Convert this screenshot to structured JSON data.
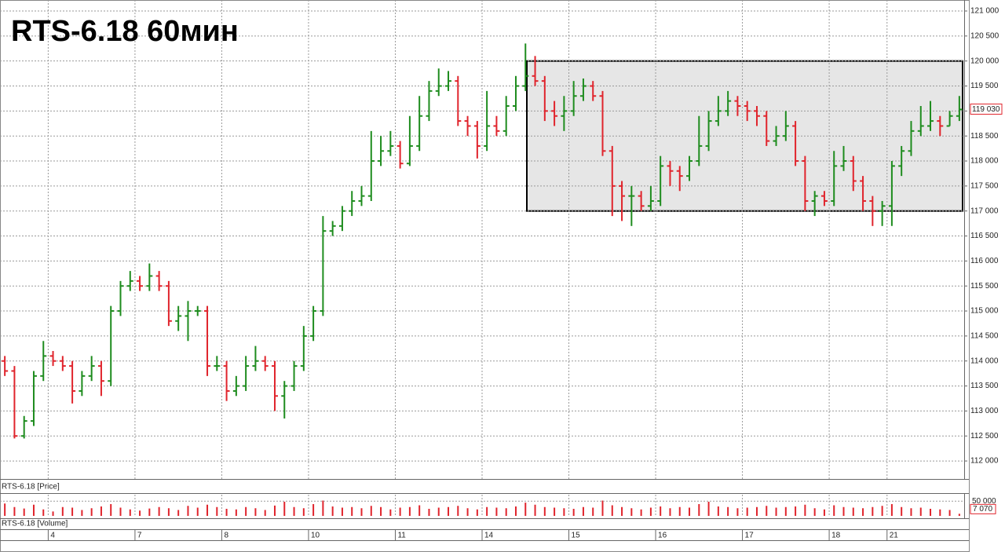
{
  "chart_data": {
    "type": "ohlc",
    "title": "RTS-6.18 60мин",
    "price_pane_label": "RTS-6.18 [Price]",
    "volume_pane_label": "RTS-6.18 [Volume]",
    "up_color": "#1e8c1e",
    "down_color": "#e0242c",
    "volume_color": "#e0242c",
    "box_fill": "#e6e6e6",
    "box": {
      "top": 120000,
      "bottom": 117000
    },
    "grid": true,
    "categories": [
      null,
      null,
      null,
      null,
      null,
      "4",
      null,
      null,
      null,
      null,
      null,
      null,
      null,
      null,
      "7",
      null,
      null,
      null,
      null,
      null,
      null,
      null,
      null,
      "8",
      null,
      null,
      null,
      null,
      null,
      null,
      null,
      null,
      "10",
      null,
      null,
      null,
      null,
      null,
      null,
      null,
      null,
      "11",
      null,
      null,
      null,
      null,
      null,
      null,
      null,
      null,
      "14",
      null,
      null,
      null,
      null,
      null,
      null,
      null,
      null,
      "15",
      null,
      null,
      null,
      null,
      null,
      null,
      null,
      null,
      "16",
      null,
      null,
      null,
      null,
      null,
      null,
      null,
      null,
      "17",
      null,
      null,
      null,
      null,
      null,
      null,
      null,
      null,
      "18",
      null,
      null,
      null,
      null,
      null,
      "21",
      null,
      null,
      null,
      null,
      null,
      null,
      null
    ],
    "open": [
      114000,
      113800,
      112500,
      112800,
      113700,
      114100,
      114000,
      113900,
      113400,
      113700,
      113900,
      113600,
      115000,
      115500,
      115600,
      115500,
      115700,
      115500,
      114800,
      114900,
      115000,
      115000,
      113900,
      113900,
      113400,
      113500,
      113900,
      114000,
      113900,
      113300,
      113500,
      113900,
      114500,
      115000,
      116600,
      116700,
      117000,
      117200,
      117300,
      118000,
      118200,
      118300,
      117950,
      118300,
      118900,
      119400,
      119500,
      119600,
      118800,
      118700,
      118300,
      118700,
      118600,
      119100,
      119500,
      119700,
      119600,
      119000,
      118900,
      119000,
      119300,
      119500,
      119300,
      118200,
      117500,
      117300,
      117300,
      117100,
      117200,
      117900,
      117800,
      117700,
      118000,
      118300,
      118800,
      119000,
      119200,
      119100,
      119000,
      118900,
      118400,
      118500,
      118700,
      118000,
      117200,
      117300,
      117200,
      117900,
      118000,
      117600,
      117200,
      117000,
      117100,
      117900,
      118200,
      118600,
      118700,
      118800,
      118700,
      118900
    ],
    "high": [
      114100,
      113900,
      112900,
      113800,
      114400,
      114200,
      114100,
      114000,
      113800,
      114100,
      114000,
      115100,
      115600,
      115800,
      115700,
      115950,
      115800,
      115600,
      115100,
      115200,
      115100,
      115100,
      114100,
      114000,
      113700,
      114100,
      114300,
      114100,
      114000,
      113600,
      114000,
      114700,
      115100,
      116900,
      116800,
      117100,
      117400,
      117500,
      118600,
      118500,
      118600,
      118400,
      118900,
      119300,
      119600,
      119850,
      119800,
      119700,
      118900,
      118800,
      119400,
      118900,
      119300,
      119700,
      120350,
      120100,
      119700,
      119200,
      119300,
      119600,
      119650,
      119600,
      119400,
      118300,
      117600,
      117500,
      117400,
      117500,
      118100,
      118000,
      117900,
      118100,
      118900,
      119000,
      119300,
      119400,
      119300,
      119200,
      119100,
      119000,
      118700,
      119000,
      118800,
      118100,
      117400,
      117400,
      118200,
      118300,
      118100,
      117700,
      117300,
      117200,
      118000,
      118300,
      118800,
      119100,
      119200,
      118900,
      119000,
      119300
    ],
    "low": [
      113700,
      112450,
      112450,
      112700,
      113600,
      113900,
      113800,
      113150,
      113300,
      113600,
      113300,
      113500,
      114900,
      115400,
      115400,
      115400,
      115400,
      114700,
      114600,
      114400,
      114900,
      113700,
      113800,
      113200,
      113300,
      113400,
      113800,
      113800,
      113000,
      112850,
      113400,
      113800,
      114400,
      114900,
      116500,
      116600,
      116900,
      117100,
      117200,
      117900,
      118100,
      117850,
      117900,
      118200,
      118800,
      119300,
      119400,
      118700,
      118500,
      118050,
      118200,
      118500,
      118500,
      119000,
      119400,
      119500,
      118800,
      118700,
      118600,
      118900,
      119200,
      119200,
      118100,
      116900,
      116800,
      116700,
      117000,
      117000,
      117100,
      117500,
      117400,
      117600,
      117900,
      118200,
      118700,
      118900,
      118900,
      118800,
      118700,
      118300,
      118300,
      118400,
      117900,
      117000,
      116900,
      117100,
      117100,
      117800,
      117400,
      117000,
      116700,
      116700,
      116700,
      117700,
      118100,
      118500,
      118600,
      118500,
      118700,
      118800
    ],
    "close": [
      113800,
      112500,
      112800,
      113700,
      114100,
      114000,
      113900,
      113400,
      113700,
      113900,
      113600,
      115000,
      115500,
      115600,
      115500,
      115700,
      115500,
      114800,
      114900,
      115000,
      115000,
      113900,
      113900,
      113400,
      113500,
      113900,
      114000,
      113900,
      113300,
      113500,
      113900,
      114500,
      115000,
      116600,
      116700,
      117000,
      117200,
      117300,
      118000,
      118200,
      118300,
      117950,
      118300,
      118900,
      119400,
      119500,
      119600,
      118800,
      118700,
      118300,
      118700,
      118600,
      119100,
      119500,
      119700,
      119600,
      119000,
      118900,
      119000,
      119300,
      119500,
      119300,
      118200,
      117500,
      117300,
      117300,
      117100,
      117200,
      117900,
      117800,
      117700,
      118000,
      118300,
      118800,
      119000,
      119200,
      119100,
      119000,
      118900,
      118400,
      118500,
      118700,
      118000,
      117200,
      117300,
      117200,
      117900,
      118000,
      117600,
      117200,
      117000,
      117100,
      117900,
      118200,
      118600,
      118700,
      118800,
      118700,
      118900,
      119030
    ],
    "volume": [
      42000,
      30000,
      25000,
      38000,
      22000,
      15000,
      30000,
      28000,
      20000,
      26000,
      32000,
      40000,
      28000,
      22000,
      18000,
      25000,
      30000,
      26000,
      20000,
      34000,
      28000,
      38000,
      30000,
      24000,
      22000,
      30000,
      26000,
      20000,
      35000,
      48000,
      30000,
      26000,
      40000,
      52000,
      32000,
      28000,
      30000,
      26000,
      34000,
      30000,
      22000,
      28000,
      30000,
      36000,
      24000,
      28000,
      30000,
      34000,
      26000,
      22000,
      30000,
      28000,
      26000,
      32000,
      45000,
      38000,
      30000,
      28000,
      26000,
      24000,
      30000,
      28000,
      52000,
      36000,
      30000,
      26000,
      22000,
      28000,
      32000,
      26000,
      30000,
      28000,
      40000,
      48000,
      32000,
      30000,
      26000,
      28000,
      30000,
      34000,
      28000,
      30000,
      32000,
      38000,
      26000,
      22000,
      36000,
      30000,
      28000,
      26000,
      30000,
      34000,
      40000,
      30000,
      26000,
      28000,
      24000,
      22000,
      20000,
      7070
    ],
    "ylim": [
      111640,
      121220
    ],
    "yticks": [
      {
        "value": 112000,
        "label": "112 000"
      },
      {
        "value": 112500,
        "label": "112 500"
      },
      {
        "value": 113000,
        "label": "113 000"
      },
      {
        "value": 113500,
        "label": "113 500"
      },
      {
        "value": 114000,
        "label": "114 000"
      },
      {
        "value": 114500,
        "label": "114 500"
      },
      {
        "value": 115000,
        "label": "115 000"
      },
      {
        "value": 115500,
        "label": "115 500"
      },
      {
        "value": 116000,
        "label": "116 000"
      },
      {
        "value": 116500,
        "label": "116 500"
      },
      {
        "value": 117000,
        "label": "117 000"
      },
      {
        "value": 117500,
        "label": "117 500"
      },
      {
        "value": 118000,
        "label": "118 000"
      },
      {
        "value": 118500,
        "label": "118 500"
      },
      {
        "value": 119000,
        "label": "119 000"
      },
      {
        "value": 119500,
        "label": "119 500"
      },
      {
        "value": 120000,
        "label": "120 000"
      },
      {
        "value": 120500,
        "label": "120 500"
      },
      {
        "value": 121000,
        "label": "121 000"
      }
    ],
    "last_close_label": "119 030",
    "volume_ylim": [
      0,
      72000
    ],
    "volume_yticks": [
      {
        "value": 50000,
        "label": "50 000"
      }
    ],
    "last_volume_label": "7 070"
  }
}
